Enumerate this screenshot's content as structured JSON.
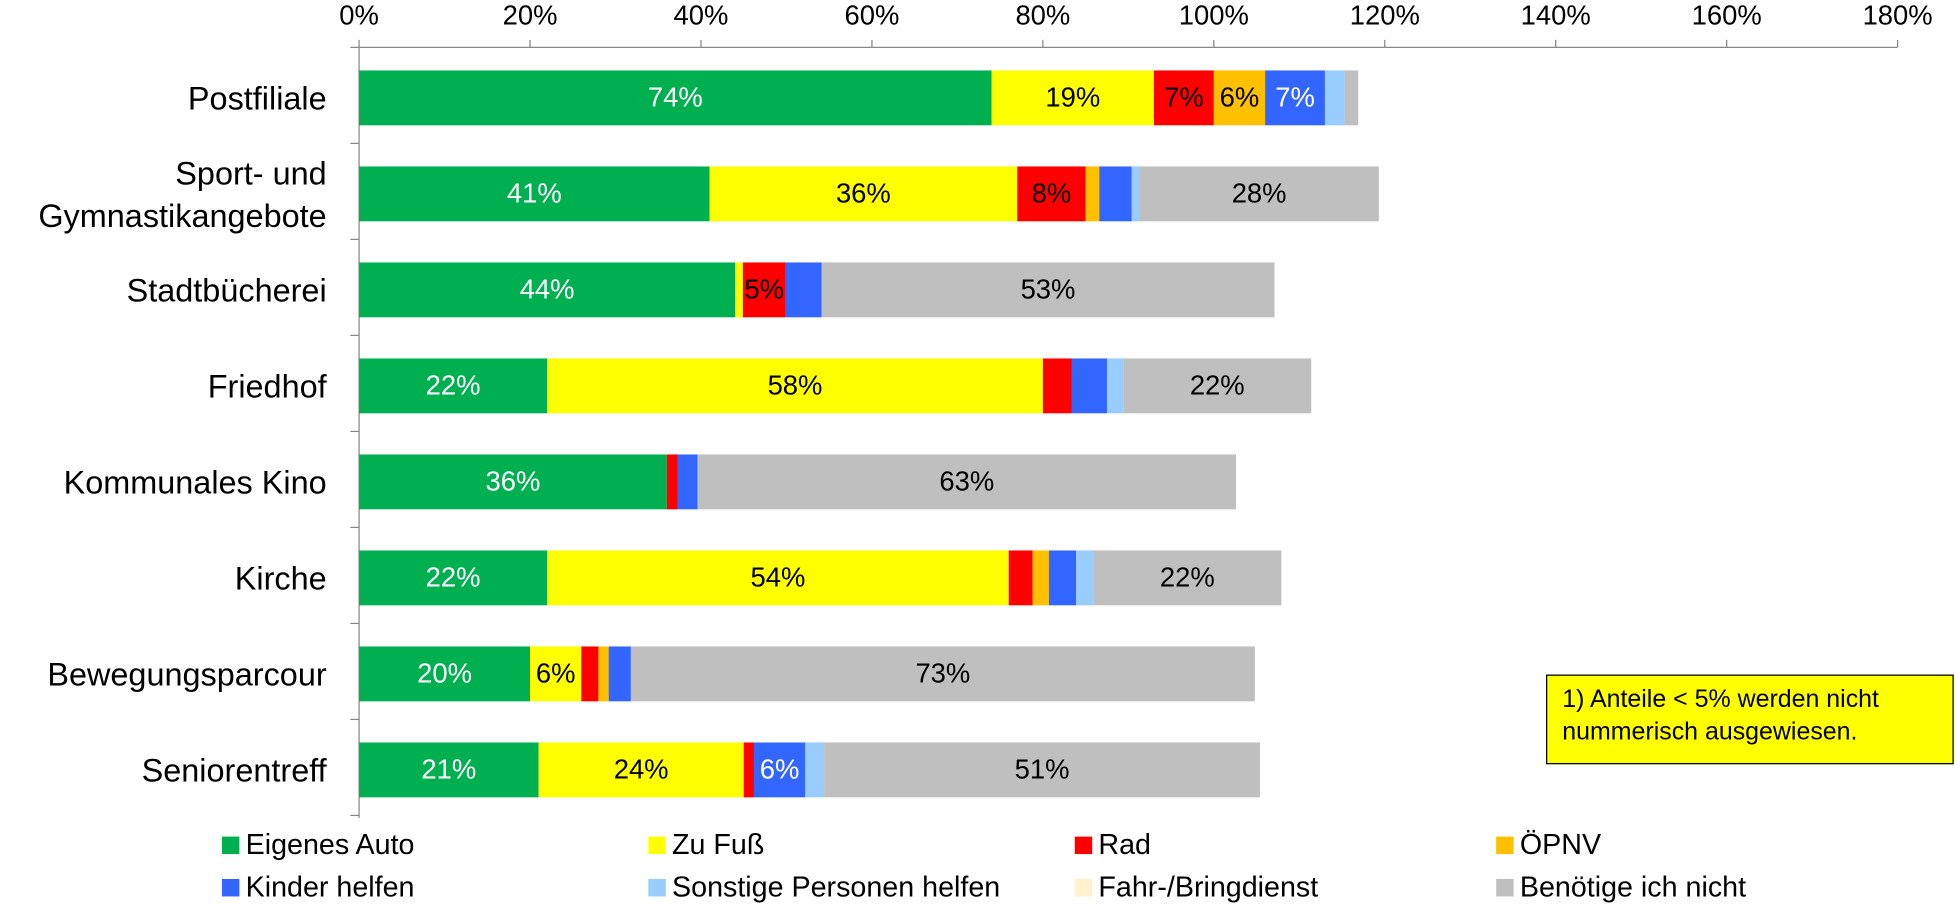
{
  "chart_data": {
    "type": "stacked_barh",
    "categories": [
      "Postfiliale",
      "Sport- und Gymnastikangebote",
      "Stadtbücherei",
      "Friedhof",
      "Kommunales Kino",
      "Kirche",
      "Bewegungsparcour",
      "Seniorentreff"
    ],
    "series": [
      {
        "name": "Eigenes Auto",
        "color": "#00b050",
        "label_color": "#ffffff",
        "values": [
          74,
          41,
          44,
          22,
          36,
          22,
          20,
          21
        ],
        "value_labels": [
          "74%",
          "41%",
          "44%",
          "22%",
          "36%",
          "22%",
          "20%",
          "21%"
        ]
      },
      {
        "name": "Zu Fuß",
        "color": "#ffff00",
        "label_color": "#000000",
        "values": [
          19,
          36,
          0.9,
          58,
          0,
          54,
          6,
          24
        ],
        "value_labels": [
          "19%",
          "36%",
          null,
          "58%",
          null,
          "54%",
          "6%",
          "24%"
        ]
      },
      {
        "name": "Rad",
        "color": "#ff0000",
        "label_color": "#000000",
        "values": [
          7,
          8,
          5,
          3.4,
          1.3,
          2.8,
          2,
          1.2
        ],
        "value_labels": [
          "7%",
          "8%",
          "5%",
          null,
          null,
          null,
          null,
          null
        ]
      },
      {
        "name": "ÖPNV",
        "color": "#ffc000",
        "label_color": "#000000",
        "values": [
          6,
          1.6,
          0,
          0,
          0,
          1.9,
          1.2,
          0
        ],
        "value_labels": [
          "6%",
          null,
          null,
          null,
          null,
          null,
          null,
          null
        ]
      },
      {
        "name": "Kinder helfen",
        "color": "#3366ff",
        "label_color": "#ffffff",
        "values": [
          7,
          3.8,
          4.2,
          4.1,
          2.3,
          3.2,
          2.6,
          6
        ],
        "value_labels": [
          "7%",
          null,
          null,
          null,
          null,
          null,
          null,
          "6%"
        ]
      },
      {
        "name": "Sonstige Personen helfen",
        "color": "#99ccff",
        "label_color": "#000000",
        "values": [
          2.3,
          0.9,
          0,
          1.9,
          0,
          2,
          0,
          2.2
        ],
        "value_labels": [
          null,
          null,
          null,
          null,
          null,
          null,
          null,
          null
        ]
      },
      {
        "name": "Fahr-/Bringdienst",
        "color": "#fff2cc",
        "label_color": "#000000",
        "values": [
          0,
          0,
          0,
          0,
          0,
          0,
          0,
          0
        ],
        "value_labels": [
          null,
          null,
          null,
          null,
          null,
          null,
          null,
          null
        ]
      },
      {
        "name": "Benötige ich nicht",
        "color": "#bfbfbf",
        "label_color": "#000000",
        "values": [
          1.6,
          28,
          53,
          22,
          63,
          22,
          73,
          51
        ],
        "value_labels": [
          null,
          "28%",
          "53%",
          "22%",
          "63%",
          "22%",
          "73%",
          "51%"
        ]
      }
    ],
    "xlim": [
      0,
      180
    ],
    "xticks": [
      {
        "value": 0,
        "label": "0%"
      },
      {
        "value": 20,
        "label": "20%"
      },
      {
        "value": 40,
        "label": "40%"
      },
      {
        "value": 60,
        "label": "60%"
      },
      {
        "value": 80,
        "label": "80%"
      },
      {
        "value": 100,
        "label": "100%"
      },
      {
        "value": 120,
        "label": "120%"
      },
      {
        "value": 140,
        "label": "140%"
      },
      {
        "value": 160,
        "label": "160%"
      },
      {
        "value": 180,
        "label": "180%"
      }
    ],
    "note": [
      "1) Anteile < 5% werden nicht",
      "nummerisch ausgewiesen."
    ]
  }
}
